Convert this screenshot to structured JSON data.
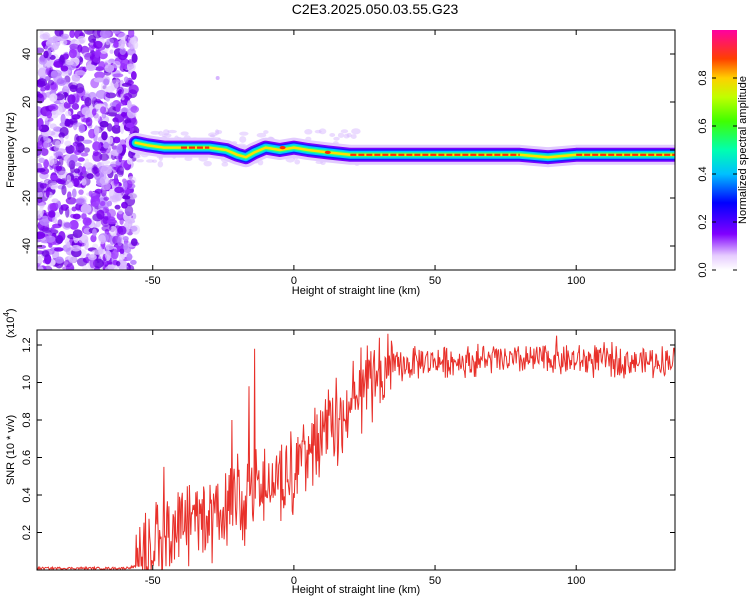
{
  "title": "C2E3.2025.050.03.55.G23",
  "colors": {
    "snr_line": "#e8302a",
    "frame": "#000000",
    "low": "#8000ff"
  },
  "chart_data": [
    {
      "type": "heatmap",
      "xlabel": "Height of straight line (km)",
      "ylabel": "Frequency (Hz)",
      "xlim": [
        -91,
        135
      ],
      "ylim": [
        -50,
        50
      ],
      "xticks": [
        "-50",
        "0",
        "50",
        "100"
      ],
      "xtick_values": [
        -50,
        0,
        50,
        100
      ],
      "yticks": [
        "-40",
        "-20",
        "0",
        "20",
        "40"
      ],
      "ytick_values": [
        -40,
        -20,
        0,
        20,
        40
      ],
      "colorbar": {
        "label": "Normalized spectral amplitude",
        "ticks": [
          "0.0",
          "0.2",
          "0.4",
          "0.6",
          "0.8"
        ],
        "tick_values": [
          0.0,
          0.2,
          0.4,
          0.6,
          0.8
        ],
        "range": [
          0,
          1
        ],
        "colormap": "rainbow"
      },
      "noise_region_x": [
        -91,
        -56
      ],
      "signal_track": [
        {
          "x": -56,
          "f": 3
        },
        {
          "x": -52,
          "f": 2
        },
        {
          "x": -46,
          "f": 1
        },
        {
          "x": -40,
          "f": 1
        },
        {
          "x": -30,
          "f": 1
        },
        {
          "x": -24,
          "f": 0
        },
        {
          "x": -20,
          "f": -2
        },
        {
          "x": -17,
          "f": -3
        },
        {
          "x": -14,
          "f": -1
        },
        {
          "x": -10,
          "f": 1
        },
        {
          "x": -5,
          "f": 0
        },
        {
          "x": 0,
          "f": 1
        },
        {
          "x": 5,
          "f": 0
        },
        {
          "x": 12,
          "f": -1
        },
        {
          "x": 20,
          "f": -2
        },
        {
          "x": 40,
          "f": -2
        },
        {
          "x": 60,
          "f": -2
        },
        {
          "x": 80,
          "f": -2
        },
        {
          "x": 90,
          "f": -3
        },
        {
          "x": 100,
          "f": -2
        },
        {
          "x": 120,
          "f": -2
        },
        {
          "x": 135,
          "f": -2
        }
      ]
    },
    {
      "type": "line",
      "xlabel": "Height of straight line (km)",
      "ylabel": "SNR (10 * v/v)",
      "yscale_label": "(x10",
      "yscale_exp": "4",
      "xlim": [
        -91,
        135
      ],
      "ylim": [
        0.0,
        1.28
      ],
      "xticks": [
        "-50",
        "0",
        "50",
        "100"
      ],
      "xtick_values": [
        -50,
        0,
        50,
        100
      ],
      "yticks": [
        "0.2",
        "0.4",
        "0.6",
        "0.8",
        "1.0",
        "1.2"
      ],
      "ytick_values": [
        0.2,
        0.4,
        0.6,
        0.8,
        1.0,
        1.2
      ],
      "series": [
        {
          "x": [
            -91,
            -80,
            -70,
            -60,
            -56,
            -52,
            -48,
            -45,
            -40,
            -35,
            -30,
            -25,
            -20,
            -15,
            -10,
            -5,
            0,
            5,
            10,
            15,
            20,
            25,
            30,
            35,
            40,
            45,
            50,
            55,
            60,
            70,
            80,
            90,
            100,
            110,
            120,
            130,
            135
          ],
          "y": [
            0.01,
            0.01,
            0.01,
            0.01,
            0.02,
            0.08,
            0.15,
            0.22,
            0.25,
            0.28,
            0.32,
            0.35,
            0.4,
            0.42,
            0.45,
            0.5,
            0.55,
            0.62,
            0.72,
            0.82,
            0.9,
            0.96,
            1.02,
            1.08,
            1.1,
            1.12,
            1.12,
            1.12,
            1.12,
            1.13,
            1.12,
            1.14,
            1.12,
            1.13,
            1.12,
            1.12,
            1.13
          ]
        }
      ],
      "spikes": [
        {
          "x": -14,
          "y": 1.18
        },
        {
          "x": -16,
          "y": 0.98
        },
        {
          "x": -22,
          "y": 0.8
        },
        {
          "x": -46,
          "y": 0.55
        },
        {
          "x": 93,
          "y": 1.25
        }
      ]
    }
  ]
}
